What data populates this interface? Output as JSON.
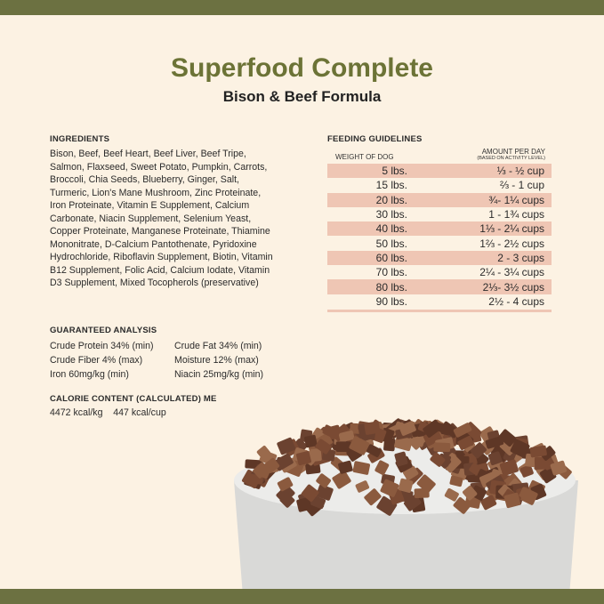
{
  "title": "Superfood Complete",
  "subtitle": "Bison & Beef Formula",
  "ingredients": {
    "heading": "INGREDIENTS",
    "text": "Bison, Beef, Beef Heart, Beef Liver, Beef Tripe, Salmon, Flaxseed, Sweet Potato, Pumpkin, Carrots, Broccoli, Chia Seeds, Blueberry, Ginger, Salt, Turmeric, Lion's Mane Mushroom, Zinc Proteinate, Iron Proteinate, Vitamin E Supplement, Calcium Carbonate, Niacin Supplement, Selenium Yeast, Copper Proteinate, Manganese Proteinate, Thiamine Mononitrate, D-Calcium Pantothenate, Pyridoxine Hydrochloride, Riboflavin Supplement, Biotin, Vitamin B12 Supplement, Folic Acid, Calcium Iodate, Vitamin D3 Supplement, Mixed Tocopherols (preservative)"
  },
  "analysis": {
    "heading": "GUARANTEED ANALYSIS",
    "items": [
      "Crude Protein 34% (min)",
      "Crude Fat 34% (min)",
      "Crude Fiber 4% (max)",
      "Moisture 12% (max)",
      "Iron 60mg/kg (min)",
      "Niacin 25mg/kg (min)"
    ]
  },
  "calorie": {
    "heading": "CALORIE CONTENT (CALCULATED) ME",
    "text": "4472 kcal/kg    447 kcal/cup"
  },
  "feeding": {
    "heading": "FEEDING GUIDELINES",
    "col_weight": "WEIGHT OF DOG",
    "col_amount": "AMOUNT PER DAY",
    "col_amount_note": "(BASED ON ACTIVITY LEVEL)",
    "rows": [
      {
        "weight": "5 lbs.",
        "amount": "⅓ - ½ cup"
      },
      {
        "weight": "15 lbs.",
        "amount": "⅔ - 1 cup"
      },
      {
        "weight": "20 lbs.",
        "amount": "¾- 1¼ cups"
      },
      {
        "weight": "30 lbs.",
        "amount": "1 - 1¾ cups"
      },
      {
        "weight": "40 lbs.",
        "amount": "1⅓ - 2¼ cups"
      },
      {
        "weight": "50 lbs.",
        "amount": "1⅔ - 2½ cups"
      },
      {
        "weight": "60 lbs.",
        "amount": "2 - 3 cups"
      },
      {
        "weight": "70 lbs.",
        "amount": "2¼ - 3¼ cups"
      },
      {
        "weight": "80 lbs.",
        "amount": "2⅓- 3½ cups"
      },
      {
        "weight": "90 lbs.",
        "amount": "2½ - 4 cups"
      }
    ]
  },
  "colors": {
    "brand": "#6c7336",
    "row_highlight": "#efc6b4",
    "background": "#fcf2e3"
  }
}
